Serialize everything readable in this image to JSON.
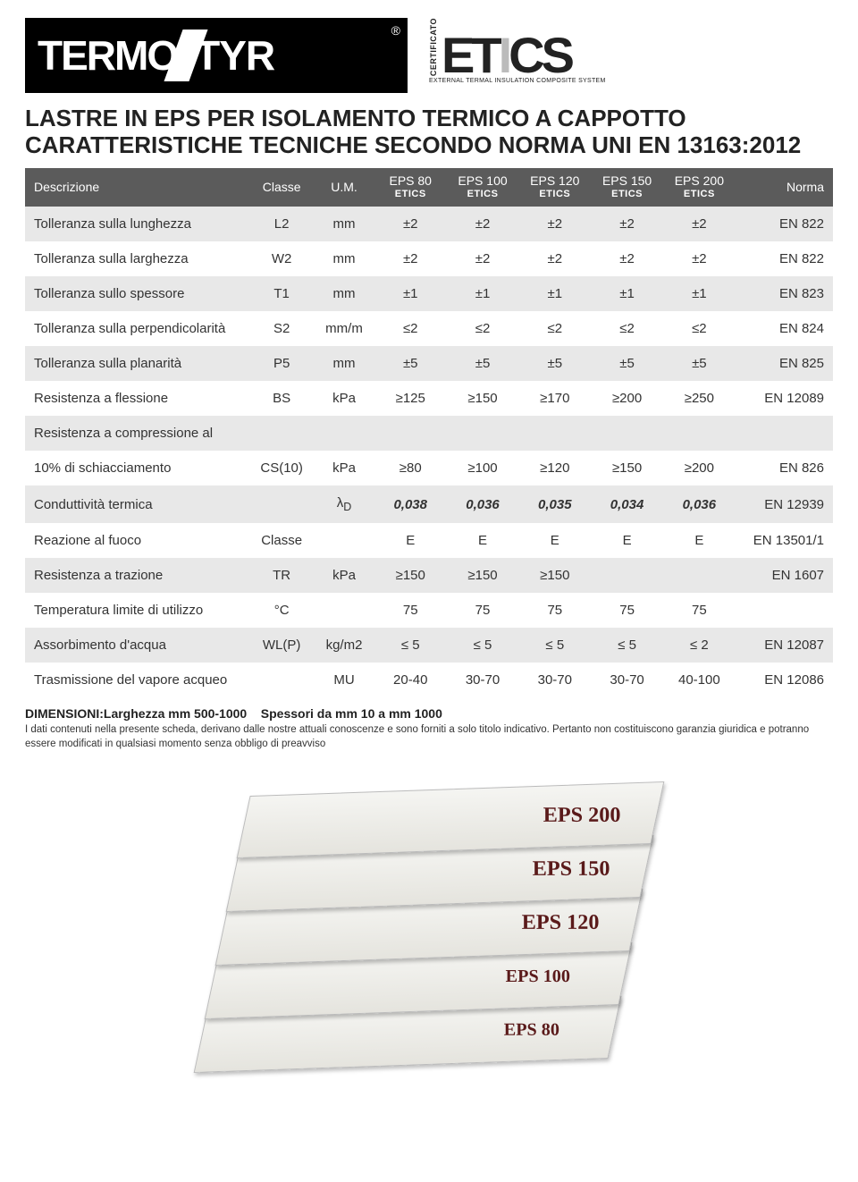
{
  "logos": {
    "termostyr_part1": "TERMO",
    "termostyr_part2": "TYR",
    "reg": "®",
    "etics_cert": "CERTIFICATO",
    "etics_big": [
      "E",
      "T",
      "I",
      "C",
      "S"
    ],
    "etics_sub": "EXTERNAL TERMAL INSULATION COMPOSITE SYSTEM"
  },
  "title_line1": "LASTRE IN EPS PER ISOLAMENTO TERMICO A CAPPOTTO",
  "title_line2": "CARATTERISTICHE TECNICHE SECONDO NORMA UNI EN 13163:2012",
  "table": {
    "headers": {
      "desc": "Descrizione",
      "classe": "Classe",
      "um": "U.M.",
      "cols": [
        "EPS 80",
        "EPS 100",
        "EPS 120",
        "EPS 150",
        "EPS 200"
      ],
      "etics": "ETICS",
      "norma": "Norma"
    },
    "rows": [
      {
        "desc": "Tolleranza sulla lunghezza",
        "classe": "L2",
        "um": "mm",
        "v": [
          "±2",
          "±2",
          "±2",
          "±2",
          "±2"
        ],
        "norma": "EN 822"
      },
      {
        "desc": "Tolleranza sulla larghezza",
        "classe": "W2",
        "um": "mm",
        "v": [
          "±2",
          "±2",
          "±2",
          "±2",
          "±2"
        ],
        "norma": "EN 822"
      },
      {
        "desc": "Tolleranza sullo spessore",
        "classe": "T1",
        "um": "mm",
        "v": [
          "±1",
          "±1",
          "±1",
          "±1",
          "±1"
        ],
        "norma": "EN 823"
      },
      {
        "desc": "Tolleranza sulla perpendicolarità",
        "classe": "S2",
        "um": "mm/m",
        "v": [
          "≤2",
          "≤2",
          "≤2",
          "≤2",
          "≤2"
        ],
        "norma": "EN 824"
      },
      {
        "desc": "Tolleranza sulla planarità",
        "classe": "P5",
        "um": "mm",
        "v": [
          "±5",
          "±5",
          "±5",
          "±5",
          "±5"
        ],
        "norma": "EN 825"
      },
      {
        "desc": "Resistenza a flessione",
        "classe": "BS",
        "um": "kPa",
        "v": [
          "≥125",
          "≥150",
          "≥170",
          "≥200",
          "≥250"
        ],
        "norma": "EN 12089"
      },
      {
        "desc": "Resistenza a compressione al",
        "classe": "",
        "um": "",
        "v": [
          "",
          "",
          "",
          "",
          ""
        ],
        "norma": ""
      },
      {
        "desc": "10% di schiacciamento",
        "classe": "CS(10)",
        "um": "kPa",
        "v": [
          "≥80",
          "≥100",
          "≥120",
          "≥150",
          "≥200"
        ],
        "norma": "EN 826"
      },
      {
        "desc": "Conduttività termica",
        "classe": "",
        "um": "λ_D",
        "v": [
          "0,038",
          "0,036",
          "0,035",
          "0,034",
          "0,036"
        ],
        "norma": "EN 12939",
        "bold": true
      },
      {
        "desc": "Reazione al fuoco",
        "classe": "Classe",
        "um": "",
        "v": [
          "E",
          "E",
          "E",
          "E",
          "E"
        ],
        "norma": "EN 13501/1"
      },
      {
        "desc": "Resistenza a trazione",
        "classe": "TR",
        "um": "kPa",
        "v": [
          "≥150",
          "≥150",
          "≥150",
          "",
          ""
        ],
        "norma": "EN 1607"
      },
      {
        "desc": "Temperatura limite di utilizzo",
        "classe": "°C",
        "um": "",
        "v": [
          "75",
          "75",
          "75",
          "75",
          "75"
        ],
        "norma": ""
      },
      {
        "desc": "Assorbimento d'acqua",
        "classe": "WL(P)",
        "um": "kg/m2",
        "v": [
          "≤ 5",
          "≤ 5",
          "≤ 5",
          "≤ 5",
          "≤ 2"
        ],
        "norma": "EN 12087"
      },
      {
        "desc": "Trasmissione del vapore acqueo",
        "classe": "",
        "um": "MU",
        "v": [
          "20-40",
          "30-70",
          "30-70",
          "30-70",
          "40-100"
        ],
        "norma": "EN 12086"
      }
    ]
  },
  "dims_label": "DIMENSIONI:Larghezza mm 500-1000",
  "dims_spessori": "Spessori da mm 10 a mm 1000",
  "footnote": "I dati contenuti nella presente scheda, derivano dalle nostre attuali conoscenze e sono forniti a solo titolo indicativo. Pertanto non costituiscono garanzia giuridica e potranno essere modificati in qualsiasi momento senza obbligo di preavviso",
  "panels": [
    "EPS 200",
    "EPS 150",
    "EPS 120",
    "EPS 100",
    "EPS 80"
  ],
  "colors": {
    "header_bg": "#5b5b5b",
    "row_alt": "#e8e8e8",
    "accent_green": "#93c23e",
    "text": "#333333"
  }
}
